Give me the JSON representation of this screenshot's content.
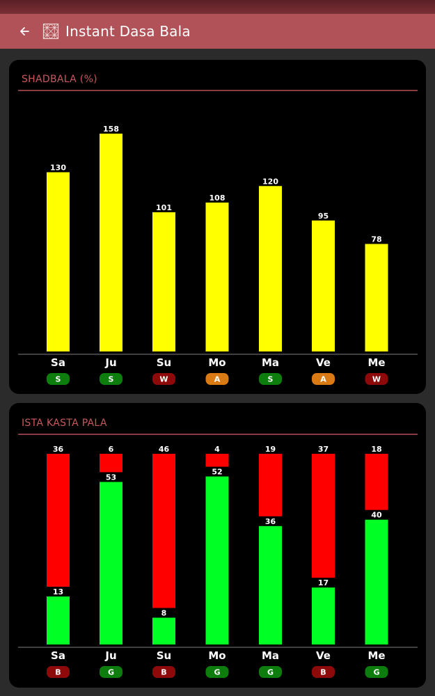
{
  "app": {
    "title": "Instant Dasa Bala",
    "back_icon": "arrow-left-icon",
    "logo_icon": "app-logo-icon"
  },
  "colors": {
    "appbar": "#b05258",
    "shadbala_bar": "#ffff00",
    "ishta": "#00ff24",
    "kashta": "#ff0000",
    "badge_S": "#0d7d0d",
    "badge_A": "#d97a14",
    "badge_W": "#8e0a0a",
    "badge_G": "#0d7d0d",
    "badge_B": "#8e0a0a"
  },
  "chart_data": [
    {
      "type": "bar",
      "title": "SHADBALA (%)",
      "categories": [
        "Sa",
        "Ju",
        "Su",
        "Mo",
        "Ma",
        "Ve",
        "Me"
      ],
      "values": [
        130,
        158,
        101,
        108,
        120,
        95,
        78
      ],
      "badges": [
        "S",
        "S",
        "W",
        "A",
        "S",
        "A",
        "W"
      ],
      "ylim": [
        0,
        158
      ]
    },
    {
      "type": "bar",
      "title": "ISTA KASTA PALA",
      "stacked": true,
      "categories": [
        "Sa",
        "Ju",
        "Su",
        "Mo",
        "Ma",
        "Ve",
        "Me"
      ],
      "series": [
        {
          "values": [
            13,
            53,
            8,
            52,
            36,
            17,
            40
          ]
        },
        {
          "values": [
            36,
            6,
            46,
            4,
            19,
            37,
            18
          ]
        }
      ],
      "badges": [
        "B",
        "G",
        "B",
        "G",
        "G",
        "B",
        "G"
      ]
    }
  ]
}
